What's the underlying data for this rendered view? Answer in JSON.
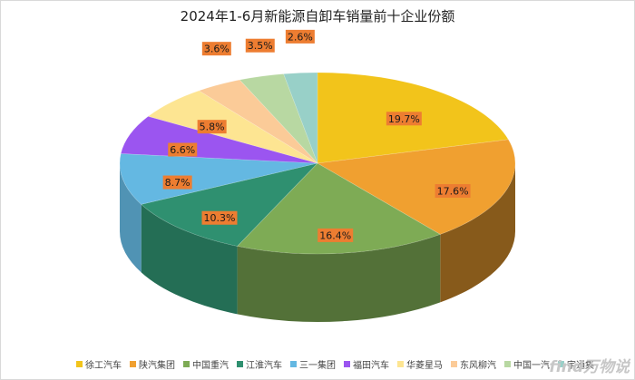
{
  "chart_data": {
    "type": "pie",
    "title": "2024年1-6月新能源自卸车销量前十企业份额",
    "slices": [
      {
        "name": "徐工汽车",
        "value": 19.7,
        "label": "19.7%",
        "color": "#f2c41b"
      },
      {
        "name": "陕汽集团",
        "value": 17.6,
        "label": "17.6%",
        "color": "#f0a030"
      },
      {
        "name": "中国重汽",
        "value": 16.4,
        "label": "16.4%",
        "color": "#7eab55"
      },
      {
        "name": "江淮汽车",
        "value": 10.3,
        "label": "10.3%",
        "color": "#2f9070"
      },
      {
        "name": "三一集团",
        "value": 8.7,
        "label": "8.7%",
        "color": "#64b8e2"
      },
      {
        "name": "福田汽车",
        "value": 6.6,
        "label": "6.6%",
        "color": "#9b55f0"
      },
      {
        "name": "华菱星马",
        "value": 5.8,
        "label": "5.8%",
        "color": "#fde592"
      },
      {
        "name": "东风柳汽",
        "value": 3.6,
        "label": "3.6%",
        "color": "#fbcb98"
      },
      {
        "name": "中国一汽",
        "value": 3.5,
        "label": "3.5%",
        "color": "#b8d8a2"
      },
      {
        "name": "宇通集",
        "value": 2.6,
        "label": "2.6%",
        "color": "#98d0c8"
      }
    ],
    "legend_position": "bottom"
  },
  "watermark": "find万物说"
}
